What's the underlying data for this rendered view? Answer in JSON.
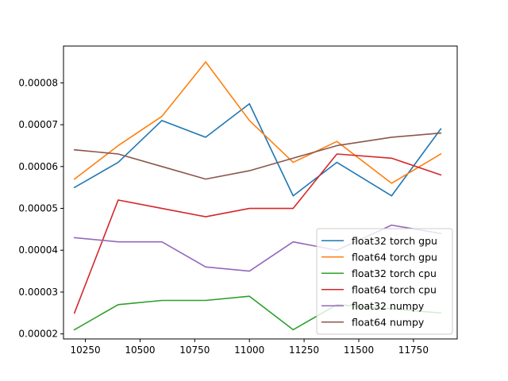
{
  "chart_data": {
    "type": "line",
    "title": "",
    "xlabel": "",
    "ylabel": "",
    "xlim": [
      10150,
      11950
    ],
    "ylim": [
      1.88e-05,
      8.88e-05
    ],
    "x": [
      10200,
      10400,
      10600,
      10800,
      11000,
      11200,
      11400,
      11650,
      11875
    ],
    "x_ticks": [
      10250,
      10500,
      10750,
      11000,
      11250,
      11500,
      11750
    ],
    "x_tick_labels": [
      "10250",
      "10500",
      "10750",
      "11000",
      "11250",
      "11500",
      "11750"
    ],
    "y_ticks": [
      2e-05,
      3e-05,
      4e-05,
      5e-05,
      6e-05,
      7e-05,
      8e-05
    ],
    "y_tick_labels": [
      "0.00002",
      "0.00003",
      "0.00004",
      "0.00005",
      "0.00006",
      "0.00007",
      "0.00008"
    ],
    "legend_position": "lower-right",
    "grid": false,
    "series": [
      {
        "name": "float32 torch gpu",
        "color": "#1f77b4",
        "values": [
          5.5e-05,
          6.1e-05,
          7.1e-05,
          6.7e-05,
          7.5e-05,
          5.3e-05,
          6.1e-05,
          5.3e-05,
          6.9e-05
        ]
      },
      {
        "name": "float64 torch gpu",
        "color": "#ff7f0e",
        "values": [
          5.7e-05,
          6.5e-05,
          7.2e-05,
          8.5e-05,
          7.1e-05,
          6.1e-05,
          6.6e-05,
          5.6e-05,
          6.3e-05
        ]
      },
      {
        "name": "float32 torch cpu",
        "color": "#2ca02c",
        "values": [
          2.1e-05,
          2.7e-05,
          2.8e-05,
          2.8e-05,
          2.9e-05,
          2.1e-05,
          2.7e-05,
          2.6e-05,
          2.5e-05
        ]
      },
      {
        "name": "float64 torch cpu",
        "color": "#d62728",
        "values": [
          2.5e-05,
          5.2e-05,
          5e-05,
          4.8e-05,
          5e-05,
          5e-05,
          6.3e-05,
          6.2e-05,
          5.8e-05
        ]
      },
      {
        "name": "float32 numpy",
        "color": "#9467bd",
        "values": [
          4.3e-05,
          4.2e-05,
          4.2e-05,
          3.6e-05,
          3.5e-05,
          4.2e-05,
          4e-05,
          4.6e-05,
          4.4e-05
        ]
      },
      {
        "name": "float64 numpy",
        "color": "#8c564b",
        "values": [
          6.4e-05,
          6.3e-05,
          6e-05,
          5.7e-05,
          5.9e-05,
          6.2e-05,
          6.5e-05,
          6.7e-05,
          6.8e-05
        ]
      }
    ]
  }
}
